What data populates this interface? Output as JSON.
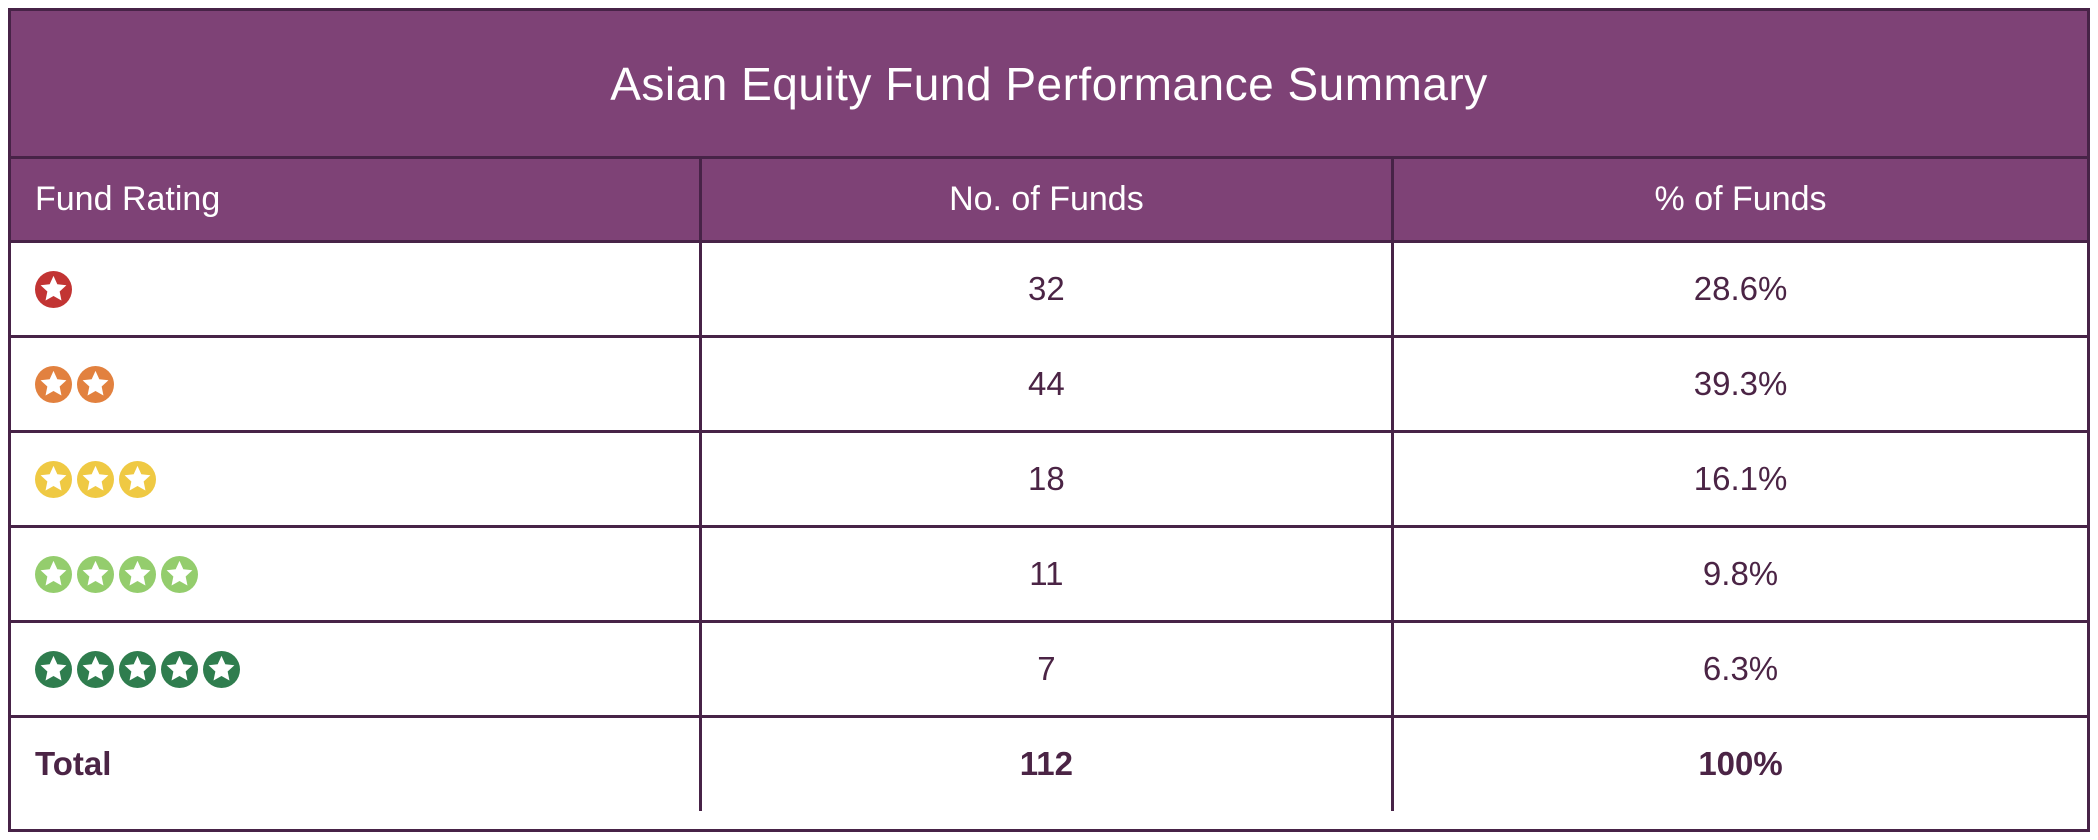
{
  "title": "Asian Equity Fund Performance Summary",
  "columns": [
    "Fund Rating",
    "No. of Funds",
    "% of Funds"
  ],
  "rows": [
    {
      "rating": 1,
      "star_color": "#c23433",
      "funds": "32",
      "pct": "28.6%"
    },
    {
      "rating": 2,
      "star_color": "#e2813f",
      "funds": "44",
      "pct": "39.3%"
    },
    {
      "rating": 3,
      "star_color": "#efc943",
      "funds": "18",
      "pct": "16.1%"
    },
    {
      "rating": 4,
      "star_color": "#94cd6d",
      "funds": "11",
      "pct": "9.8%"
    },
    {
      "rating": 5,
      "star_color": "#2f7d4e",
      "funds": "7",
      "pct": "6.3%"
    }
  ],
  "total": {
    "label": "Total",
    "funds": "112",
    "pct": "100%"
  },
  "colors": {
    "header_bg": "#7e4276",
    "border": "#472347",
    "text": "#4b2445",
    "header_text": "#ffffff",
    "page_bg": "#ffffff"
  },
  "chart_data": {
    "type": "table",
    "title": "Asian Equity Fund Performance Summary",
    "columns": [
      "Fund Rating",
      "No. of Funds",
      "% of Funds"
    ],
    "rows": [
      [
        "1 star",
        32,
        "28.6%"
      ],
      [
        "2 stars",
        44,
        "39.3%"
      ],
      [
        "3 stars",
        18,
        "16.1%"
      ],
      [
        "4 stars",
        11,
        "9.8%"
      ],
      [
        "5 stars",
        7,
        "6.3%"
      ],
      [
        "Total",
        112,
        "100%"
      ]
    ]
  }
}
